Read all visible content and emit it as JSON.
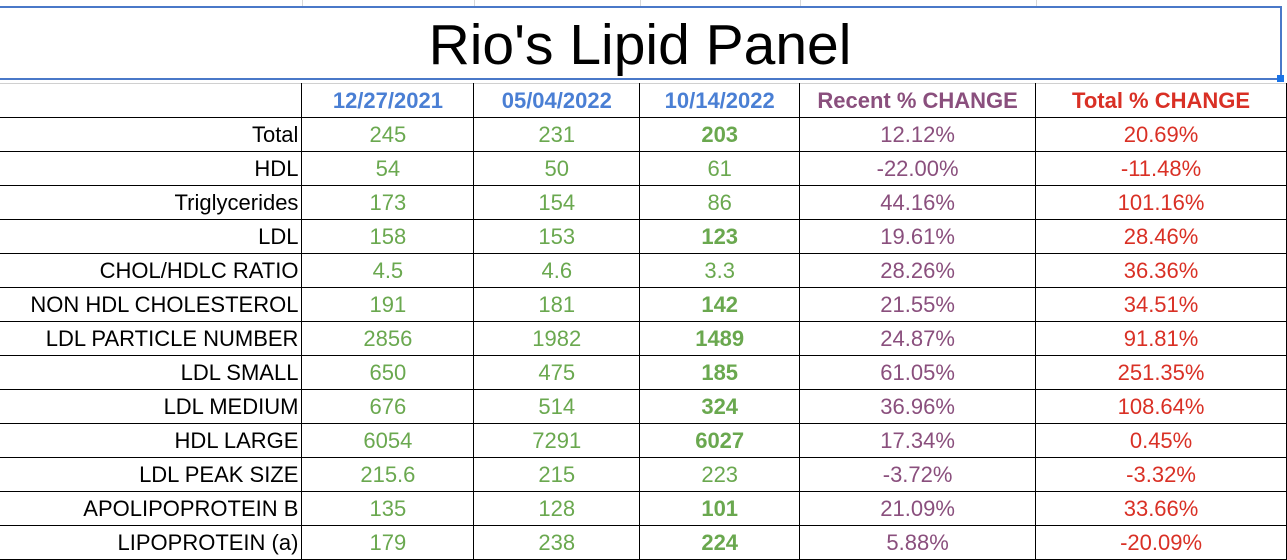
{
  "title": "Rio's Lipid Panel",
  "headers": {
    "date1": "12/27/2021",
    "date2": "05/04/2022",
    "date3": "10/14/2022",
    "recent": "Recent % CHANGE",
    "total": "Total % CHANGE"
  },
  "rows": [
    {
      "label": "Total",
      "v1": "245",
      "v2": "231",
      "v3": "203",
      "v3_bold": true,
      "recent": "12.12%",
      "total": "20.69%"
    },
    {
      "label": "HDL",
      "v1": "54",
      "v2": "50",
      "v3": "61",
      "v3_bold": false,
      "recent": "-22.00%",
      "total": "-11.48%"
    },
    {
      "label": "Triglycerides",
      "v1": "173",
      "v2": "154",
      "v3": "86",
      "v3_bold": false,
      "recent": "44.16%",
      "total": "101.16%"
    },
    {
      "label": "LDL",
      "v1": "158",
      "v2": "153",
      "v3": "123",
      "v3_bold": true,
      "recent": "19.61%",
      "total": "28.46%"
    },
    {
      "label": "CHOL/HDLC RATIO",
      "v1": "4.5",
      "v2": "4.6",
      "v3": "3.3",
      "v3_bold": false,
      "recent": "28.26%",
      "total": "36.36%"
    },
    {
      "label": "NON HDL CHOLESTEROL",
      "v1": "191",
      "v2": "181",
      "v3": "142",
      "v3_bold": true,
      "recent": "21.55%",
      "total": "34.51%"
    },
    {
      "label": "LDL PARTICLE NUMBER",
      "v1": "2856",
      "v2": "1982",
      "v3": "1489",
      "v3_bold": true,
      "recent": "24.87%",
      "total": "91.81%"
    },
    {
      "label": "LDL SMALL",
      "v1": "650",
      "v2": "475",
      "v3": "185",
      "v3_bold": true,
      "recent": "61.05%",
      "total": "251.35%"
    },
    {
      "label": "LDL MEDIUM",
      "v1": "676",
      "v2": "514",
      "v3": "324",
      "v3_bold": true,
      "recent": "36.96%",
      "total": "108.64%"
    },
    {
      "label": "HDL LARGE",
      "v1": "6054",
      "v2": "7291",
      "v3": "6027",
      "v3_bold": true,
      "recent": "17.34%",
      "total": "0.45%"
    },
    {
      "label": "LDL PEAK SIZE",
      "v1": "215.6",
      "v2": "215",
      "v3": "223",
      "v3_bold": false,
      "recent": "-3.72%",
      "total": "-3.32%"
    },
    {
      "label": "APOLIPOPROTEIN B",
      "v1": "135",
      "v2": "128",
      "v3": "101",
      "v3_bold": true,
      "recent": "21.09%",
      "total": "33.66%"
    },
    {
      "label": "LIPOPROTEIN (a)",
      "v1": "179",
      "v2": "238",
      "v3": "224",
      "v3_bold": true,
      "recent": "5.88%",
      "total": "-20.09%"
    }
  ],
  "colors": {
    "date_header": "#4a7fd4",
    "recent_header": "#8a4f7d",
    "total_header": "#d93025",
    "values": "#6aa84f",
    "selection": "#1a73e8"
  }
}
